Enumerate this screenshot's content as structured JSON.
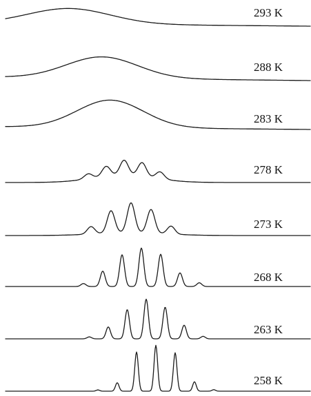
{
  "chart_data": {
    "type": "line",
    "title": "",
    "xlabel": "",
    "ylabel": "",
    "series": [
      {
        "name": "293 K",
        "label": "293 K",
        "kind": "broad",
        "amplitude": 0.45
      },
      {
        "name": "288 K",
        "label": "288 K",
        "kind": "broad",
        "amplitude": 0.62
      },
      {
        "name": "283 K",
        "label": "283 K",
        "kind": "broad",
        "amplitude": 0.8
      },
      {
        "name": "278 K",
        "label": "278 K",
        "kind": "resolved",
        "line_amplitudes": [
          0.2,
          0.4,
          0.6,
          0.55,
          0.28
        ],
        "broad_amplitude": 0.3,
        "linewidth": 0.55
      },
      {
        "name": "273 K",
        "label": "273 K",
        "kind": "resolved",
        "line_amplitudes": [
          0.3,
          0.9,
          1.2,
          0.95,
          0.32
        ],
        "broad_amplitude": 0.12,
        "linewidth": 0.45
      },
      {
        "name": "268 K",
        "label": "268 K",
        "kind": "resolved",
        "line_amplitudes": [
          0.12,
          0.62,
          1.28,
          1.55,
          1.3,
          0.55,
          0.15
        ],
        "broad_amplitude": 0.0,
        "linewidth": 0.3
      },
      {
        "name": "263 K",
        "label": "263 K",
        "kind": "resolved",
        "line_amplitudes": [
          0.08,
          0.48,
          1.18,
          1.6,
          1.28,
          0.55,
          0.1
        ],
        "broad_amplitude": 0.0,
        "linewidth": 0.28
      },
      {
        "name": "258 K",
        "label": "258 K",
        "kind": "resolved",
        "line_amplitudes": [
          0.05,
          0.34,
          1.58,
          1.85,
          1.55,
          0.38,
          0.06
        ],
        "broad_amplitude": 0.0,
        "linewidth": 0.22
      }
    ]
  }
}
